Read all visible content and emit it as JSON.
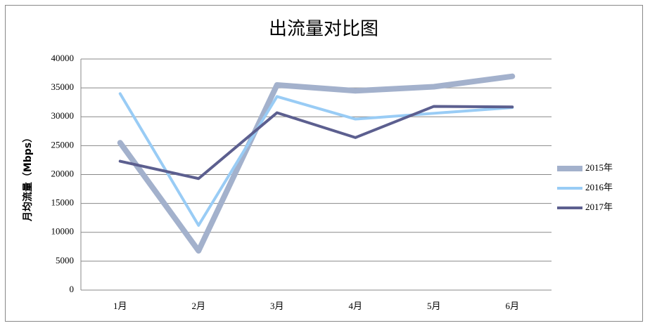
{
  "chart_data": {
    "type": "line",
    "title": "出流量对比图",
    "y_label": "月均流量（Mbps）",
    "categories": [
      "1月",
      "2月",
      "3月",
      "4月",
      "5月",
      "6月"
    ],
    "series": [
      {
        "name": "2015年",
        "color": "#a3b1cc",
        "line_width": 8,
        "values": [
          25500,
          6800,
          35500,
          34500,
          35200,
          37000
        ]
      },
      {
        "name": "2016年",
        "color": "#99ccf5",
        "line_width": 4,
        "values": [
          34000,
          11200,
          33500,
          29600,
          30600,
          31600
        ]
      },
      {
        "name": "2017年",
        "color": "#5c5f8f",
        "line_width": 4,
        "values": [
          22300,
          19300,
          30700,
          26400,
          31800,
          31700
        ]
      }
    ],
    "ylim": [
      0,
      40000
    ],
    "yticks": [
      0,
      5000,
      10000,
      15000,
      20000,
      25000,
      30000,
      35000,
      40000
    ],
    "grid": true,
    "legend": "right"
  }
}
